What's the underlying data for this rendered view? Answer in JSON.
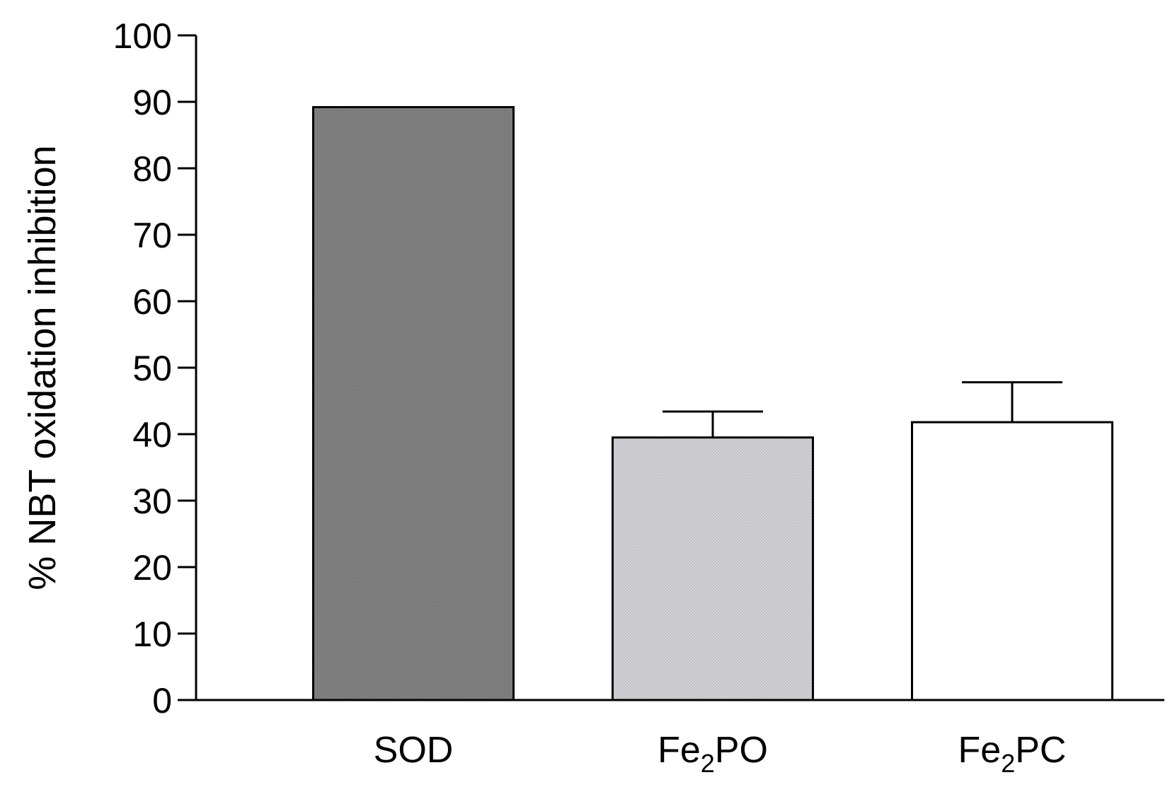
{
  "chart_data": {
    "type": "bar",
    "title": "",
    "xlabel": "",
    "ylabel": "% NBT oxidation inhibition",
    "ylim": [
      0,
      100
    ],
    "yticks": [
      0,
      10,
      20,
      30,
      40,
      50,
      60,
      70,
      80,
      90,
      100
    ],
    "grid": false,
    "legend": "none",
    "categories": [
      "SOD",
      "Fe2PO",
      "Fe2PC"
    ],
    "category_labels": [
      {
        "main": "SOD",
        "sub": "",
        "tail": ""
      },
      {
        "main": "Fe",
        "sub": "2",
        "tail": "PO"
      },
      {
        "main": "Fe",
        "sub": "2",
        "tail": "PC"
      }
    ],
    "values": [
      89.2,
      39.5,
      41.8
    ],
    "errors": [
      0,
      3.9,
      6.0
    ],
    "colors": [
      "#7f7f7f",
      "#cfcfd4",
      "#ffffff"
    ]
  }
}
